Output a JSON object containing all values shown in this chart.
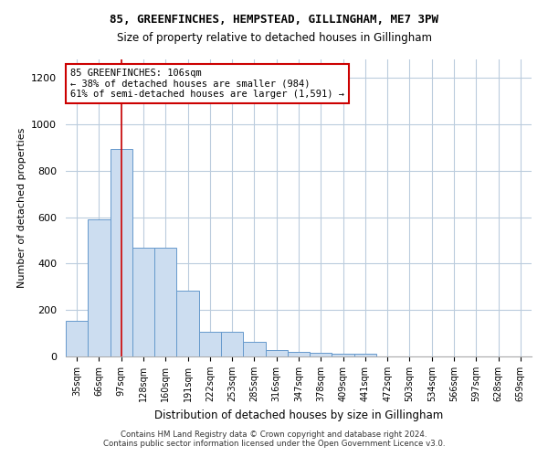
{
  "title_line1": "85, GREENFINCHES, HEMPSTEAD, GILLINGHAM, ME7 3PW",
  "title_line2": "Size of property relative to detached houses in Gillingham",
  "xlabel": "Distribution of detached houses by size in Gillingham",
  "ylabel": "Number of detached properties",
  "bar_values": [
    155,
    590,
    895,
    470,
    470,
    285,
    105,
    105,
    62,
    28,
    20,
    14,
    10,
    10,
    0,
    0,
    0,
    0,
    0,
    0,
    0
  ],
  "categories": [
    "35sqm",
    "66sqm",
    "97sqm",
    "128sqm",
    "160sqm",
    "191sqm",
    "222sqm",
    "253sqm",
    "285sqm",
    "316sqm",
    "347sqm",
    "378sqm",
    "409sqm",
    "441sqm",
    "472sqm",
    "503sqm",
    "534sqm",
    "566sqm",
    "597sqm",
    "628sqm",
    "659sqm"
  ],
  "bar_color": "#ccddf0",
  "bar_edge_color": "#6699cc",
  "vline_x": 2,
  "vline_color": "#cc0000",
  "annotation_text": "85 GREENFINCHES: 106sqm\n← 38% of detached houses are smaller (984)\n61% of semi-detached houses are larger (1,591) →",
  "annotation_box_color": "#ffffff",
  "annotation_box_edge": "#cc0000",
  "ylim": [
    0,
    1280
  ],
  "yticks": [
    0,
    200,
    400,
    600,
    800,
    1000,
    1200
  ],
  "background_color": "#ffffff",
  "grid_color": "#bbccdd",
  "footer_line1": "Contains HM Land Registry data © Crown copyright and database right 2024.",
  "footer_line2": "Contains public sector information licensed under the Open Government Licence v3.0."
}
